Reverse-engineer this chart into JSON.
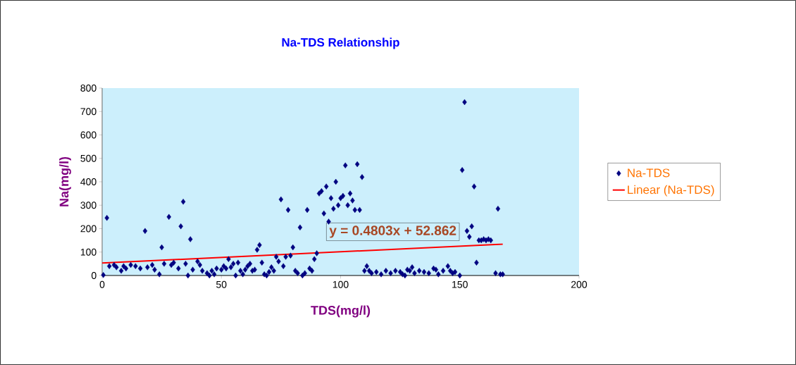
{
  "chart_data": {
    "type": "scatter",
    "title": "Na-TDS Relationship",
    "xlabel": "TDS(mg/l)",
    "ylabel": "Na(mg/l)",
    "xlim": [
      0,
      200
    ],
    "xticks": [
      0,
      50,
      100,
      150,
      200
    ],
    "ylim": [
      0,
      800
    ],
    "yticks": [
      0,
      100,
      200,
      300,
      400,
      500,
      600,
      700,
      800
    ],
    "marker": "diamond",
    "legend": "right",
    "annotations": [
      "y = 0.4803x + 52.862"
    ],
    "series": [
      {
        "name": "Na-TDS",
        "color": "#000080",
        "x": [
          0.5,
          2,
          3,
          5,
          6,
          8,
          9,
          10,
          12,
          14,
          16,
          18,
          19,
          21,
          22,
          24,
          25,
          26,
          28,
          29,
          30,
          32,
          33,
          34,
          35,
          36,
          37,
          38,
          40,
          41,
          42,
          44,
          45,
          46,
          47,
          48,
          50,
          51,
          52,
          53,
          54,
          55,
          56,
          57,
          58,
          59,
          60,
          61,
          62,
          63,
          64,
          65,
          66,
          67,
          68,
          69,
          70,
          71,
          72,
          73,
          74,
          75,
          76,
          77,
          78,
          79,
          80,
          81,
          82,
          83,
          84,
          85,
          86,
          87,
          88,
          89,
          90,
          91,
          92,
          93,
          94,
          95,
          96,
          97,
          98,
          99,
          100,
          101,
          102,
          103,
          104,
          105,
          106,
          107,
          108,
          109,
          110,
          111,
          112,
          113,
          115,
          117,
          119,
          121,
          123,
          125,
          126,
          127,
          128,
          129,
          130,
          131,
          133,
          135,
          137,
          139,
          140,
          141,
          143,
          145,
          146,
          147,
          148,
          150,
          151,
          152,
          153,
          154,
          155,
          156,
          157,
          158,
          159,
          160,
          161,
          162,
          163,
          165,
          166,
          167,
          168
        ],
        "values": [
          2,
          246,
          40,
          45,
          35,
          20,
          40,
          30,
          45,
          40,
          30,
          190,
          35,
          45,
          25,
          5,
          120,
          50,
          250,
          45,
          55,
          30,
          210,
          315,
          50,
          0,
          155,
          25,
          60,
          45,
          20,
          10,
          0,
          20,
          5,
          30,
          25,
          40,
          30,
          70,
          35,
          50,
          0,
          55,
          20,
          5,
          25,
          40,
          50,
          20,
          25,
          110,
          130,
          55,
          5,
          0,
          15,
          35,
          20,
          80,
          60,
          325,
          40,
          80,
          280,
          85,
          120,
          20,
          10,
          205,
          0,
          10,
          280,
          30,
          20,
          70,
          95,
          350,
          360,
          265,
          380,
          230,
          330,
          285,
          400,
          300,
          330,
          340,
          470,
          300,
          350,
          320,
          280,
          475,
          280,
          420,
          20,
          40,
          20,
          10,
          15,
          5,
          20,
          10,
          20,
          15,
          5,
          0,
          25,
          20,
          35,
          10,
          20,
          15,
          10,
          30,
          25,
          5,
          20,
          40,
          20,
          10,
          15,
          0,
          450,
          740,
          190,
          165,
          210,
          380,
          55,
          150,
          150,
          155,
          150,
          155,
          150,
          10,
          285,
          5,
          5
        ]
      },
      {
        "name": "Linear (Na-TDS)",
        "type": "line",
        "marker": "none",
        "color": "#ff0000",
        "x": [
          0,
          168
        ],
        "values": [
          53,
          134
        ]
      }
    ]
  }
}
